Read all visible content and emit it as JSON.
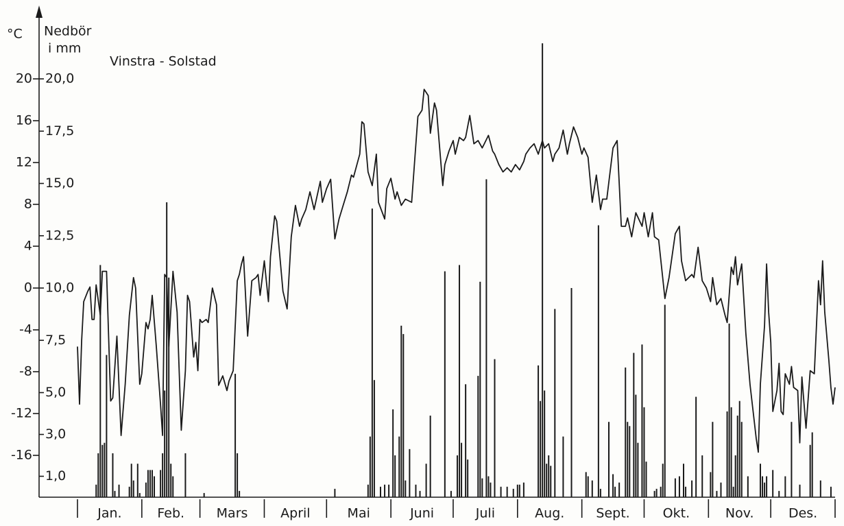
{
  "chart_data": {
    "type": "line-bar",
    "title": "Vinstra - Solstad",
    "ylabel": "°C",
    "y2label": [
      "Nedbör",
      "i mm"
    ],
    "categories": [
      "Jan.",
      "Feb.",
      "Mars",
      "April",
      "Mai",
      "Juni",
      "Juli",
      "Aug.",
      "Sept.",
      "Okt.",
      "Nov.",
      "Des."
    ],
    "xlim": [
      0,
      365
    ],
    "xticks": [
      0,
      31,
      59,
      90,
      120,
      151,
      181,
      212,
      243,
      273,
      304,
      334,
      365
    ],
    "ylim": [
      -20,
      24
    ],
    "yticks": [
      -16,
      -12,
      -8,
      -4,
      0,
      4,
      8,
      12,
      16,
      20
    ],
    "y2lim": [
      0,
      22
    ],
    "y2ticks": [
      {
        "value": 1,
        "label": "1,0"
      },
      {
        "value": 3,
        "label": "3,0"
      },
      {
        "value": 5,
        "label": "5,0"
      },
      {
        "value": 7.5,
        "label": "7,5"
      },
      {
        "value": 10,
        "label": "10,0"
      },
      {
        "value": 12.5,
        "label": "12,5"
      },
      {
        "value": 15,
        "label": "15,0"
      },
      {
        "value": 17.5,
        "label": "17,5"
      },
      {
        "value": 20,
        "label": "20,0"
      }
    ],
    "series": [
      {
        "type": "line",
        "color": "#1a1a1a",
        "x": [
          0,
          1,
          2,
          3,
          5,
          6,
          7,
          8,
          9,
          11,
          12,
          14,
          16,
          17,
          19,
          21,
          23,
          25,
          27,
          28,
          30,
          31,
          33,
          34,
          35,
          36,
          38,
          40,
          41,
          42,
          43,
          44,
          46,
          48,
          50,
          52,
          53,
          54,
          56,
          57,
          58,
          59,
          60,
          62,
          63,
          65,
          67,
          68,
          70,
          72,
          73,
          75,
          77,
          78,
          79,
          80,
          82,
          84,
          86,
          87,
          88,
          90,
          92,
          93,
          95,
          96,
          99,
          101,
          103,
          105,
          107,
          108,
          110,
          112,
          114,
          117,
          118,
          120,
          122,
          124,
          126,
          128,
          130,
          132,
          133,
          136,
          137,
          138,
          140,
          142,
          144,
          145,
          148,
          149,
          151,
          153,
          154,
          156,
          158,
          161,
          164,
          166,
          167,
          169,
          170,
          172,
          173,
          176,
          177,
          179,
          181,
          182,
          184,
          186,
          187,
          189,
          191,
          193,
          195,
          196,
          198,
          200,
          201,
          203,
          205,
          207,
          209,
          211,
          213,
          215,
          216,
          218,
          220,
          222,
          224,
          225,
          227,
          229,
          230,
          232,
          234,
          236,
          237,
          239,
          241,
          243,
          244,
          246,
          248,
          250,
          252,
          253,
          255,
          258,
          260,
          262,
          264,
          265,
          267,
          269,
          272,
          273,
          275,
          277,
          278,
          280,
          283,
          285,
          288,
          290,
          291,
          293,
          296,
          297,
          299,
          301,
          303,
          305,
          306,
          308,
          310,
          312,
          313,
          315,
          316,
          317,
          318,
          320,
          322,
          324,
          327,
          328,
          329,
          331,
          332,
          333,
          334,
          335,
          337,
          338,
          339,
          340,
          341,
          343,
          344,
          345,
          347,
          348,
          349,
          351,
          353,
          355,
          357,
          358,
          359,
          360,
          362,
          363,
          364,
          365
        ],
        "values": [
          -5.6,
          -11.1,
          -5,
          -1.3,
          -0.3,
          0.1,
          -3,
          -3,
          0.3,
          -2.6,
          1.6,
          1.6,
          -10.8,
          -10.5,
          -4.6,
          -14.1,
          -9.2,
          -2.6,
          1,
          0,
          -9.2,
          -8.2,
          -3.3,
          -3.9,
          -3,
          -0.7,
          -5.6,
          -11.1,
          -14.1,
          1.3,
          1,
          -5.6,
          1.6,
          -2.3,
          -13.6,
          -7.9,
          -0.7,
          -1.3,
          -6.6,
          -5.2,
          -7.9,
          -3,
          -3.3,
          -3,
          -3.3,
          0,
          -1.6,
          -9.3,
          -8.4,
          -9.8,
          -8.9,
          -7.9,
          0.7,
          1.3,
          2.3,
          3,
          -4.6,
          0.7,
          1,
          1.3,
          -0.7,
          2.6,
          -1.3,
          3,
          6.9,
          6.4,
          -0.3,
          -2,
          4.9,
          7.9,
          5.9,
          6.6,
          7.5,
          9.2,
          7.5,
          10.2,
          8.2,
          9.5,
          10.4,
          4.7,
          6.6,
          7.9,
          9.2,
          10.8,
          10.6,
          12.8,
          15.9,
          15.7,
          11.1,
          9.8,
          12.8,
          8.2,
          6.6,
          9.5,
          10.5,
          8.5,
          9.2,
          7.9,
          8.5,
          8.2,
          16.4,
          17,
          19,
          18.4,
          14.8,
          17.7,
          17,
          9.8,
          11.8,
          13.1,
          14.1,
          12.8,
          14.4,
          14.1,
          14.4,
          16.5,
          13.8,
          14.1,
          13.4,
          13.8,
          14.6,
          13.1,
          12.8,
          11.8,
          11.1,
          11.5,
          11.1,
          11.8,
          11.3,
          12.1,
          12.8,
          13.4,
          13.8,
          12.8,
          14.1,
          13.4,
          13.8,
          12.1,
          12.8,
          13.4,
          15.1,
          12.8,
          13.8,
          15.4,
          14.4,
          12.8,
          13.4,
          12.5,
          8.2,
          10.8,
          7.5,
          8.5,
          8.5,
          13.4,
          14.1,
          5.9,
          5.9,
          6.7,
          4.9,
          7.2,
          5.9,
          7.2,
          4.9,
          7.2,
          4.9,
          4.6,
          -1,
          1,
          5.2,
          5.9,
          2.6,
          0.7,
          1.3,
          1,
          3.9,
          0.7,
          0,
          -1.3,
          1,
          -1.6,
          -1,
          -2.6,
          -3.3,
          2,
          1.3,
          3,
          0.3,
          2.3,
          -4.3,
          -9.2,
          -14.4,
          -15.7,
          -9.2,
          -3.6,
          2.3,
          -2.3,
          -5.2,
          -11.8,
          -9.8,
          -7.2,
          -11.8,
          -12.1,
          -8.2,
          -9.2,
          -7.5,
          -9.5,
          -9.8,
          -14.8,
          -8.5,
          -13.4,
          -7.9,
          -8.2,
          0.7,
          -1.6,
          2.6,
          -2.3,
          -6.9,
          -9.5,
          -11.1,
          -9.5
        ]
      },
      {
        "type": "bar",
        "axis": "y2",
        "color": "#1a1a1a",
        "x": [
          9,
          10,
          11,
          12,
          13,
          14,
          17,
          18,
          20,
          25,
          26,
          27,
          29,
          30,
          33,
          34,
          35,
          36,
          37,
          40,
          41,
          42,
          43,
          44,
          45,
          46,
          52,
          61,
          76,
          77,
          78,
          124,
          140,
          141,
          142,
          143,
          146,
          148,
          150,
          152,
          153,
          155,
          156,
          157,
          158,
          160,
          163,
          165,
          168,
          170,
          177,
          180,
          183,
          184,
          185,
          187,
          188,
          193,
          194,
          195,
          197,
          198,
          199,
          201,
          204,
          207,
          210,
          212,
          213,
          215,
          222,
          223,
          224,
          225,
          226,
          227,
          228,
          230,
          234,
          238,
          245,
          246,
          248,
          251,
          252,
          256,
          258,
          259,
          261,
          264,
          265,
          266,
          268,
          269,
          270,
          272,
          273,
          274,
          278,
          279,
          281,
          282,
          283,
          288,
          290,
          292,
          293,
          296,
          298,
          301,
          305,
          306,
          308,
          310,
          313,
          314,
          315,
          316,
          317,
          318,
          319,
          320,
          323,
          329,
          330,
          331,
          332,
          335,
          338,
          341,
          344,
          348,
          353,
          354,
          358,
          363
        ],
        "values": [
          0.6,
          2.1,
          11.1,
          2.5,
          2.6,
          6.8,
          2.1,
          0.3,
          0.6,
          0.5,
          1.6,
          0.8,
          1.6,
          0.2,
          0.7,
          1.3,
          1.3,
          1.3,
          1,
          1.3,
          2.1,
          5.1,
          14.1,
          10.5,
          1.6,
          1,
          2.1,
          0.2,
          5.9,
          2.1,
          0.3,
          0.4,
          0.6,
          2.9,
          13.8,
          5.6,
          0.5,
          0.6,
          0.6,
          4.2,
          2,
          2.9,
          8.2,
          7.8,
          0.8,
          2.3,
          0.6,
          0.3,
          1.6,
          3.9,
          10.8,
          0.3,
          2,
          11.1,
          2.6,
          5.4,
          1.8,
          5.8,
          10.3,
          0.9,
          15.2,
          1,
          0.7,
          6.6,
          0.5,
          0.5,
          0.4,
          0.6,
          0.6,
          0.7,
          6.3,
          4.6,
          21.7,
          5.1,
          1.6,
          2,
          1.5,
          9,
          2.9,
          10,
          1.2,
          1,
          0.8,
          13,
          0.4,
          3.6,
          1.1,
          0.5,
          0.7,
          6.2,
          3.6,
          3.4,
          6.9,
          4.9,
          2.6,
          7.3,
          4.3,
          1.7,
          0.3,
          0.4,
          0.5,
          1.6,
          9.2,
          0.9,
          1,
          1.6,
          0.5,
          0.8,
          4.8,
          2,
          1.2,
          3.6,
          0.3,
          0.7,
          4.1,
          8.3,
          4.3,
          0.5,
          2,
          3.9,
          4.6,
          3.6,
          1,
          1.6,
          1,
          0.7,
          1,
          1.3,
          0.3,
          1,
          3.6,
          0.6,
          2.5,
          3.1,
          0.8,
          0.5
        ]
      }
    ]
  }
}
